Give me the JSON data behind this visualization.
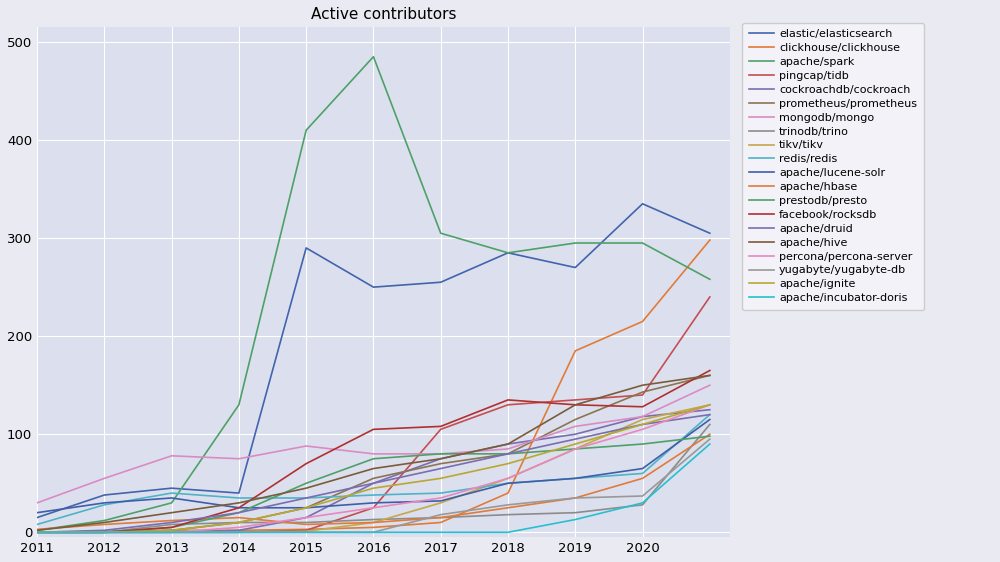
{
  "title": "Active contributors",
  "fig_bg_color": "#eaeaf2",
  "plot_bg_color": "#dce0ee",
  "legend_bg_color": "#f0f0f8",
  "years": [
    2011,
    2012,
    2013,
    2014,
    2015,
    2016,
    2017,
    2018,
    2019,
    2020,
    2021
  ],
  "series": [
    {
      "name": "elastic/elasticsearch",
      "color": "#4264ac",
      "data": [
        15,
        38,
        45,
        40,
        290,
        250,
        255,
        285,
        270,
        335,
        305
      ]
    },
    {
      "name": "clickhouse/clickhouse",
      "color": "#e07b39",
      "data": [
        0,
        1,
        2,
        2,
        3,
        5,
        10,
        40,
        185,
        215,
        298
      ]
    },
    {
      "name": "apache/spark",
      "color": "#4da167",
      "data": [
        2,
        12,
        30,
        130,
        410,
        485,
        305,
        285,
        295,
        295,
        258
      ]
    },
    {
      "name": "pingcap/tidb",
      "color": "#c44e52",
      "data": [
        0,
        0,
        0,
        0,
        2,
        25,
        105,
        130,
        135,
        140,
        240
      ]
    },
    {
      "name": "cockroachdb/cockroach",
      "color": "#7a6db0",
      "data": [
        0,
        0,
        0,
        2,
        15,
        50,
        75,
        90,
        100,
        118,
        125
      ]
    },
    {
      "name": "prometheus/prometheus",
      "color": "#8c7451",
      "data": [
        0,
        0,
        2,
        10,
        25,
        55,
        70,
        80,
        115,
        143,
        160
      ]
    },
    {
      "name": "mongodb/mongo",
      "color": "#da8bc3",
      "data": [
        30,
        55,
        78,
        75,
        88,
        80,
        80,
        85,
        108,
        118,
        150
      ]
    },
    {
      "name": "trinodb/trino",
      "color": "#8c8c8c",
      "data": [
        0,
        0,
        8,
        10,
        10,
        13,
        15,
        18,
        20,
        28,
        110
      ]
    },
    {
      "name": "tikv/tikv",
      "color": "#c4a84a",
      "data": [
        0,
        0,
        0,
        0,
        1,
        10,
        30,
        55,
        85,
        115,
        130
      ]
    },
    {
      "name": "redis/redis",
      "color": "#4fb3c8",
      "data": [
        8,
        28,
        40,
        35,
        35,
        38,
        40,
        50,
        55,
        60,
        120
      ]
    },
    {
      "name": "apache/lucene-solr",
      "color": "#3e5fa8",
      "data": [
        20,
        30,
        35,
        25,
        25,
        30,
        32,
        50,
        55,
        65,
        115
      ]
    },
    {
      "name": "apache/hbase",
      "color": "#e07b39",
      "data": [
        3,
        8,
        12,
        15,
        8,
        10,
        15,
        25,
        35,
        55,
        100
      ]
    },
    {
      "name": "prestodb/presto",
      "color": "#4da167",
      "data": [
        0,
        0,
        5,
        20,
        50,
        75,
        80,
        80,
        85,
        90,
        98
      ]
    },
    {
      "name": "facebook/rocksdb",
      "color": "#b03030",
      "data": [
        0,
        0,
        5,
        25,
        70,
        105,
        108,
        135,
        130,
        128,
        165
      ]
    },
    {
      "name": "apache/druid",
      "color": "#7a6db0",
      "data": [
        0,
        2,
        10,
        20,
        35,
        50,
        65,
        80,
        95,
        110,
        120
      ]
    },
    {
      "name": "apache/hive",
      "color": "#7a5c3a",
      "data": [
        2,
        10,
        20,
        30,
        45,
        65,
        75,
        90,
        130,
        150,
        160
      ]
    },
    {
      "name": "percona/percona-server",
      "color": "#e887c0",
      "data": [
        0,
        0,
        0,
        5,
        15,
        25,
        35,
        55,
        85,
        105,
        130
      ]
    },
    {
      "name": "yugabyte/yugabyte-db",
      "color": "#999999",
      "data": [
        0,
        0,
        0,
        0,
        0,
        0,
        18,
        28,
        35,
        37,
        95
      ]
    },
    {
      "name": "apache/ignite",
      "color": "#b8a830",
      "data": [
        0,
        0,
        2,
        10,
        25,
        45,
        55,
        70,
        90,
        110,
        130
      ]
    },
    {
      "name": "apache/incubator-doris",
      "color": "#26c0d0",
      "data": [
        0,
        0,
        0,
        0,
        0,
        0,
        0,
        0,
        13,
        30,
        90
      ]
    }
  ],
  "xticks": [
    2011,
    2012,
    2013,
    2014,
    2015,
    2016,
    2017,
    2018,
    2019,
    2020
  ],
  "yticks": [
    0,
    100,
    200,
    300,
    400,
    500
  ],
  "ylim": [
    -5,
    515
  ],
  "xlim": [
    2011,
    2021.3
  ]
}
